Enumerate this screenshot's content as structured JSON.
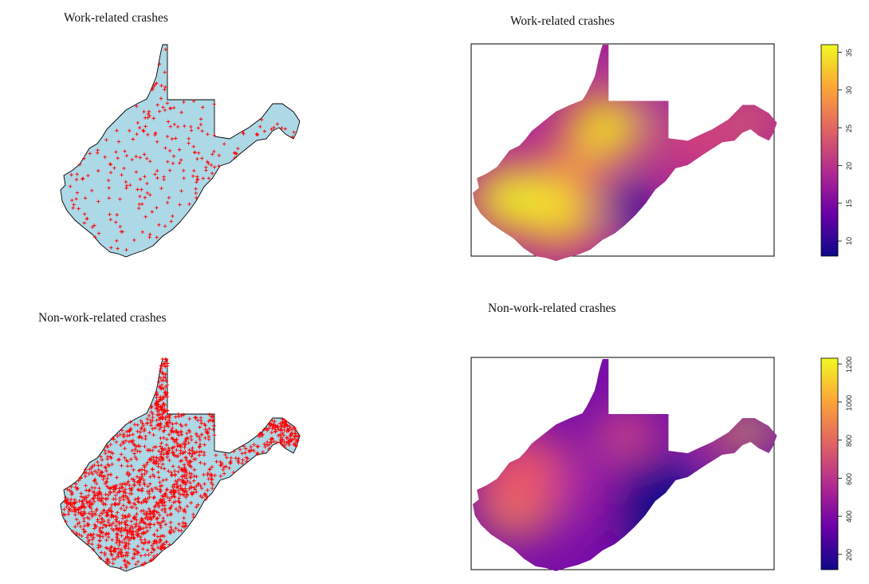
{
  "panels": {
    "top_left": {
      "title": "Work-related crashes"
    },
    "top_right": {
      "title": "Work-related crashes"
    },
    "bottom_left": {
      "title": "Non-work-related crashes"
    },
    "bottom_right": {
      "title": "Non-work-related crashes"
    }
  },
  "colors": {
    "state_fill": "#add8e6",
    "crash_marker": "#ff0000",
    "outline": "#000000"
  },
  "legends": {
    "work": {
      "min": 8,
      "max": 36,
      "ticks": [
        "10",
        "15",
        "20",
        "25",
        "30",
        "35"
      ]
    },
    "nonwork": {
      "min": 120,
      "max": 1230,
      "ticks": [
        "200",
        "400",
        "600",
        "800",
        "1000",
        "1200"
      ]
    }
  },
  "palette": [
    "#0d0887",
    "#6a00a8",
    "#b12a90",
    "#e16462",
    "#fca636",
    "#f0f921"
  ]
}
